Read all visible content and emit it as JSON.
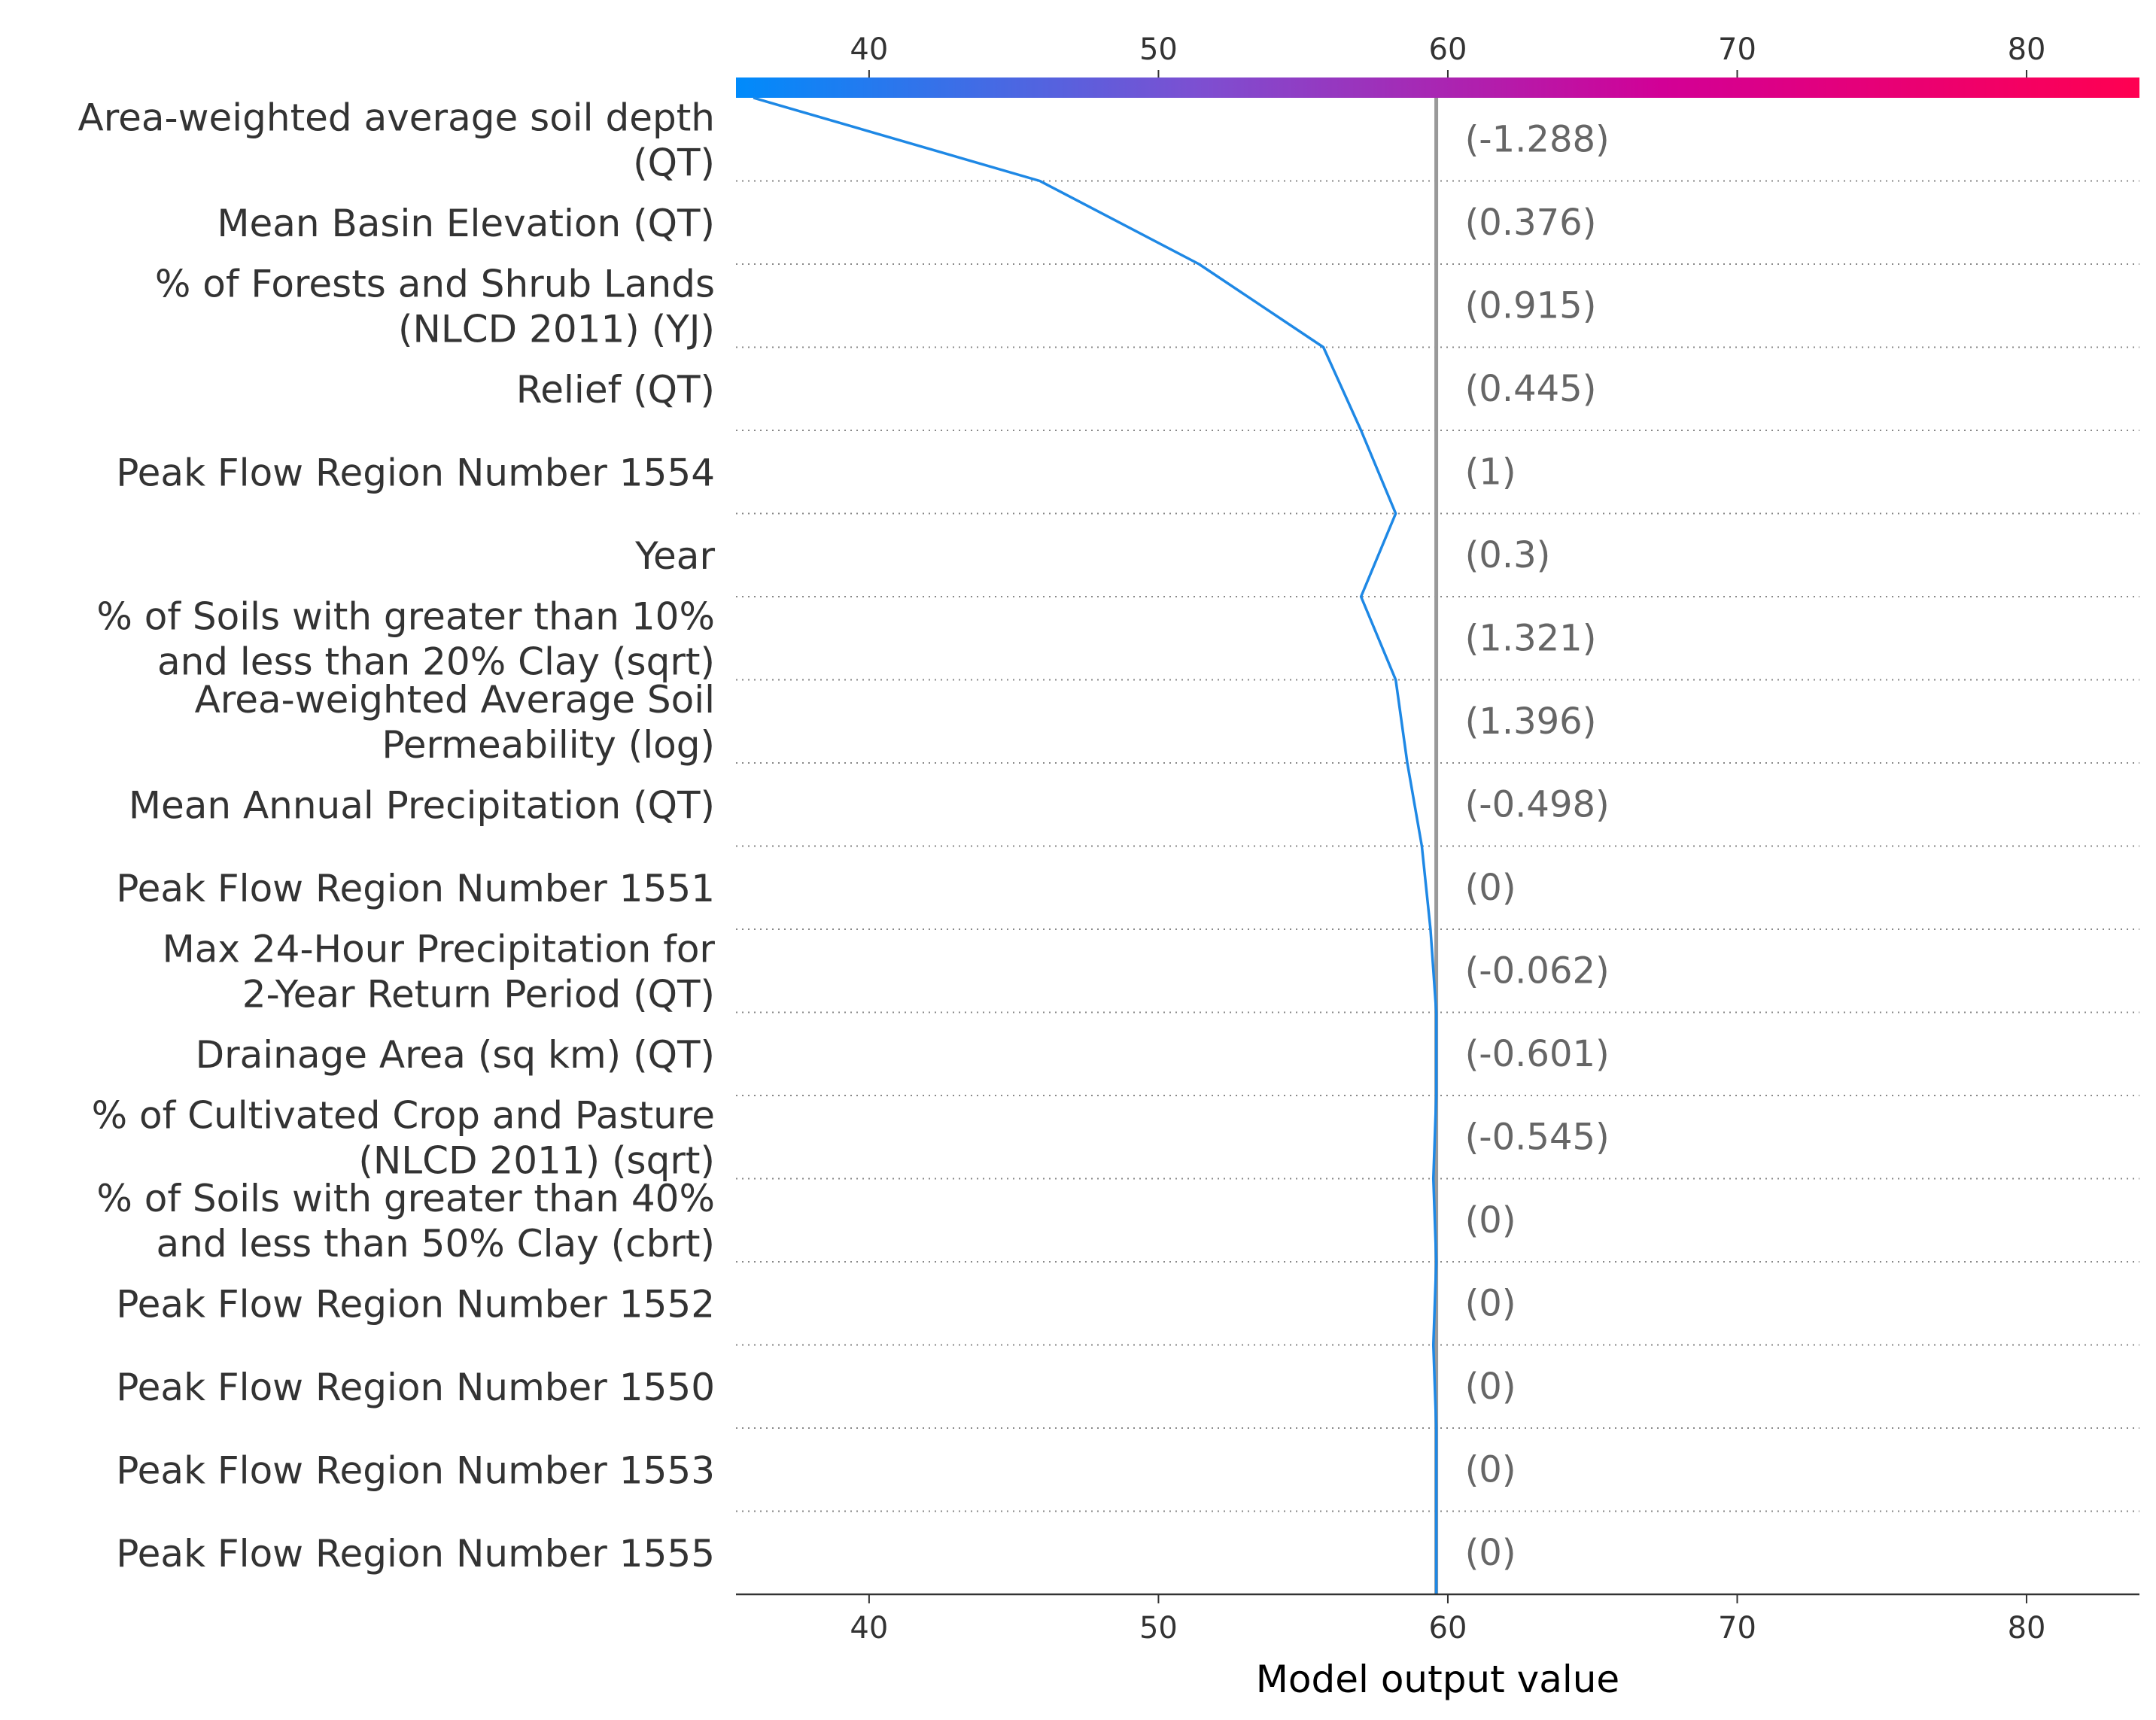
{
  "chart_data": {
    "type": "line",
    "subtype": "shap-decision-plot",
    "xlabel": "Model output value",
    "xlim": [
      35.4,
      83.9
    ],
    "xticks": [
      40,
      50,
      60,
      70,
      80
    ],
    "base_value": 36.0,
    "model_output": 59.6,
    "grid": "dotted horizontal separators between features",
    "colorbar": {
      "position": "top",
      "colors": [
        "#008bfb",
        "#7d4fd1",
        "#d20096",
        "#ff0051"
      ]
    },
    "line_color": "#1e88e5",
    "features": [
      {
        "label": [
          "Area-weighted average soil depth",
          "(QT)"
        ],
        "value_label": "(-1.288)",
        "cum_output": 45.9
      },
      {
        "label": [
          "Mean Basin Elevation (QT)"
        ],
        "value_label": "(0.376)",
        "cum_output": 51.4
      },
      {
        "label": [
          "% of Forests and Shrub Lands",
          "(NLCD 2011) (YJ)"
        ],
        "value_label": "(0.915)",
        "cum_output": 55.7
      },
      {
        "label": [
          "Relief (QT)"
        ],
        "value_label": "(0.445)",
        "cum_output": 57.0
      },
      {
        "label": [
          "Peak Flow Region Number 1554"
        ],
        "value_label": "(1)",
        "cum_output": 58.2
      },
      {
        "label": [
          "Year"
        ],
        "value_label": "(0.3)",
        "cum_output": 57.0
      },
      {
        "label": [
          "% of Soils with greater than 10%",
          "and less than 20% Clay (sqrt)"
        ],
        "value_label": "(1.321)",
        "cum_output": 58.2
      },
      {
        "label": [
          "Area-weighted Average Soil",
          "Permeability (log)"
        ],
        "value_label": "(1.396)",
        "cum_output": 58.6
      },
      {
        "label": [
          "Mean Annual Precipitation (QT)"
        ],
        "value_label": "(-0.498)",
        "cum_output": 59.1
      },
      {
        "label": [
          "Peak Flow Region Number 1551"
        ],
        "value_label": "(0)",
        "cum_output": 59.4
      },
      {
        "label": [
          "Max 24-Hour Precipitation for",
          "2-Year Return Period (QT)"
        ],
        "value_label": "(-0.062)",
        "cum_output": 59.6
      },
      {
        "label": [
          "Drainage Area (sq km) (QT)"
        ],
        "value_label": "(-0.601)",
        "cum_output": 59.6
      },
      {
        "label": [
          "% of Cultivated Crop and Pasture",
          "(NLCD 2011) (sqrt)"
        ],
        "value_label": "(-0.545)",
        "cum_output": 59.5
      },
      {
        "label": [
          "% of Soils with greater than 40%",
          "and less than 50% Clay (cbrt)"
        ],
        "value_label": "(0)",
        "cum_output": 59.6
      },
      {
        "label": [
          "Peak Flow Region Number 1552"
        ],
        "value_label": "(0)",
        "cum_output": 59.5
      },
      {
        "label": [
          "Peak Flow Region Number 1550"
        ],
        "value_label": "(0)",
        "cum_output": 59.6
      },
      {
        "label": [
          "Peak Flow Region Number 1553"
        ],
        "value_label": "(0)",
        "cum_output": 59.6
      },
      {
        "label": [
          "Peak Flow Region Number 1555"
        ],
        "value_label": "(0)",
        "cum_output": 59.6
      }
    ]
  }
}
